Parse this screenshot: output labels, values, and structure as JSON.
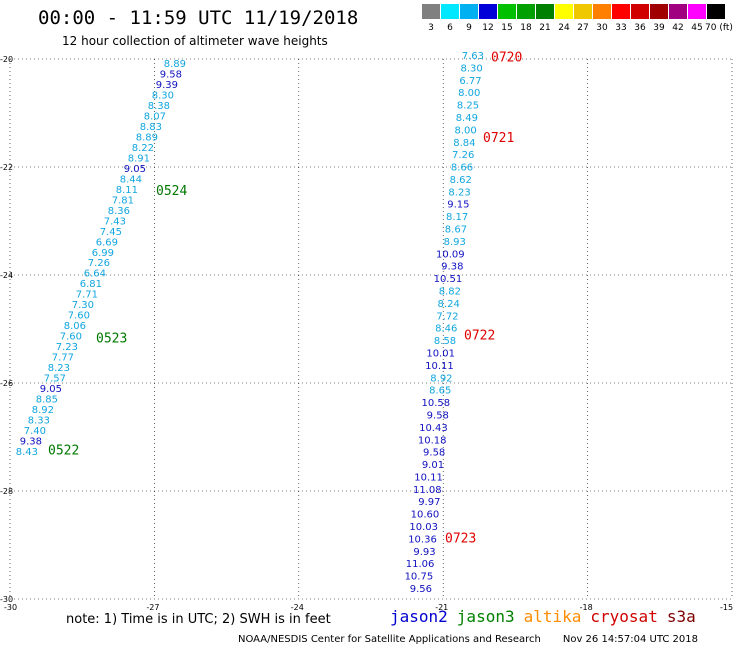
{
  "header": {
    "title": "00:00 - 11:59 UTC 11/19/2018",
    "subtitle": "12 hour collection of altimeter wave heights"
  },
  "color_scale": {
    "labels": [
      "3",
      "6",
      "9",
      "12",
      "15",
      "18",
      "21",
      "24",
      "27",
      "30",
      "33",
      "36",
      "39",
      "42",
      "45",
      "70 (ft)"
    ],
    "colors": [
      "#808080",
      "#00e8ff",
      "#00b0f0",
      "#0000d8",
      "#00c000",
      "#00a000",
      "#008000",
      "#ffff00",
      "#f0c800",
      "#ff8000",
      "#ff0000",
      "#d00000",
      "#a00000",
      "#a00080",
      "#ff00ff",
      "#000000"
    ]
  },
  "axes": {
    "lat_ticks": [
      "-20",
      "-22",
      "-24",
      "-26",
      "-28",
      "-30"
    ],
    "lon_ticks": [
      "-30",
      "-27",
      "-24",
      "-21",
      "-18",
      "-15"
    ],
    "lat_range": [
      -30,
      -20
    ],
    "lon_range": [
      -30,
      -15
    ]
  },
  "colors": {
    "cyan": "#11a6df",
    "blue": "#1010c0",
    "green": "#007800",
    "red": "#e00000"
  },
  "track_a": {
    "values": [
      "8.89",
      "9.58",
      "9.39",
      "8.30",
      "8.38",
      "8.07",
      "8.83",
      "8.89",
      "8.22",
      "8.91",
      "9.05",
      "8.44",
      "8.11",
      "7.81",
      "8.36",
      "7.43",
      "7.45",
      "6.69",
      "6.99",
      "7.26",
      "6.64",
      "6.81",
      "7.71",
      "7.30",
      "7.60",
      "8.06",
      "7.60",
      "7.23",
      "7.77",
      "8.23",
      "7.57",
      "9.05",
      "8.85",
      "8.92",
      "8.33",
      "7.40",
      "9.38",
      "8.43"
    ],
    "colors": [
      "c",
      "b",
      "b",
      "c",
      "c",
      "c",
      "c",
      "c",
      "c",
      "c",
      "b",
      "c",
      "c",
      "c",
      "c",
      "c",
      "c",
      "c",
      "c",
      "c",
      "c",
      "c",
      "c",
      "c",
      "c",
      "c",
      "c",
      "c",
      "c",
      "c",
      "c",
      "b",
      "c",
      "c",
      "c",
      "c",
      "b",
      "c"
    ],
    "pass_labels": [
      {
        "text": "0524",
        "lat": -22.44
      },
      {
        "text": "0523",
        "lat": -25.18
      },
      {
        "text": "0522",
        "lat": -27.25
      }
    ]
  },
  "track_b": {
    "values": [
      "7.63",
      "8.30",
      "6.77",
      "8.00",
      "8.25",
      "8.49",
      "8.00",
      "8.84",
      "7.26",
      "8.66",
      "8.62",
      "8.23",
      "9.15",
      "8.17",
      "8.67",
      "8.93",
      "10.09",
      "9.38",
      "10.51",
      "8.82",
      "8.24",
      "7.72",
      "8.46",
      "8.58",
      "10.01",
      "10.11",
      "8.92",
      "8.65",
      "10.58",
      "9.58",
      "10.43",
      "10.18",
      "9.58",
      "9.01",
      "10.11",
      "11.08",
      "9.97",
      "10.60",
      "10.03",
      "10.36",
      "9.93",
      "11.06",
      "10.75",
      "9.56"
    ],
    "colors": [
      "c",
      "c",
      "c",
      "c",
      "c",
      "c",
      "c",
      "c",
      "c",
      "c",
      "c",
      "c",
      "b",
      "c",
      "c",
      "c",
      "b",
      "b",
      "b",
      "c",
      "c",
      "c",
      "c",
      "c",
      "b",
      "b",
      "c",
      "c",
      "b",
      "b",
      "b",
      "b",
      "b",
      "b",
      "b",
      "b",
      "b",
      "b",
      "b",
      "b",
      "b",
      "b",
      "b",
      "b"
    ],
    "pass_labels": [
      {
        "text": "0720",
        "lat": -19.97
      },
      {
        "text": "0721",
        "lat": -21.46
      },
      {
        "text": "0722",
        "lat": -25.12
      },
      {
        "text": "0723",
        "lat": -28.88
      }
    ]
  },
  "footer": {
    "note": "note: 1) Time is in UTC; 2) SWH is in feet",
    "satellites": [
      {
        "name": "jason2",
        "color": "#0000d0"
      },
      {
        "name": "jason3",
        "color": "#008000"
      },
      {
        "name": "altika",
        "color": "#ff8c00"
      },
      {
        "name": "cryosat",
        "color": "#d00000"
      },
      {
        "name": "s3a",
        "color": "#800000"
      }
    ],
    "credit": "NOAA/NESDIS Center for Satellite Applications and Research",
    "timestamp": "Nov 26 14:57:04 UTC 2018"
  }
}
